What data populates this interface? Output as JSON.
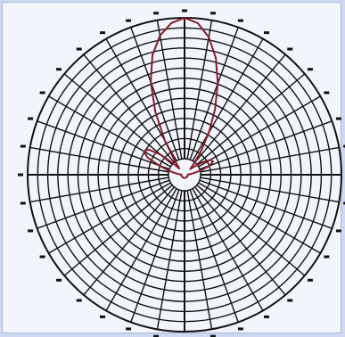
{
  "colors": {
    "background": "#cfd8f0",
    "panel": "#f2f5fc",
    "grid": "#111111",
    "pattern": "#8a1a2a"
  },
  "chart_data": {
    "type": "polar",
    "title": "",
    "grid": true,
    "r_range": [
      0,
      1
    ],
    "angle_labels": [],
    "series": [
      {
        "theta_deg": [
          0,
          5,
          10,
          15,
          20,
          25,
          30,
          35,
          40,
          45,
          50,
          55,
          60,
          65,
          70,
          75,
          80,
          85,
          90,
          95,
          100,
          105,
          110,
          115,
          120,
          125,
          130,
          135,
          140,
          145,
          150,
          155,
          160,
          165,
          170,
          175,
          180,
          185,
          190,
          195,
          200,
          205,
          210,
          215,
          220,
          225,
          230,
          235,
          240,
          245,
          250,
          255,
          260,
          265,
          270,
          275,
          280,
          285,
          290,
          295,
          300,
          305,
          310,
          315,
          320,
          325,
          330,
          335,
          340,
          345,
          350,
          355,
          360
        ],
        "r": [
          1.0,
          0.97,
          0.89,
          0.77,
          0.62,
          0.46,
          0.31,
          0.18,
          0.09,
          0.05,
          0.08,
          0.14,
          0.19,
          0.2,
          0.17,
          0.11,
          0.06,
          0.03,
          0.02,
          0.02,
          0.02,
          0.02,
          0.02,
          0.02,
          0.02,
          0.02,
          0.02,
          0.02,
          0.02,
          0.02,
          0.02,
          0.02,
          0.02,
          0.02,
          0.02,
          0.02,
          0.02,
          0.02,
          0.02,
          0.02,
          0.02,
          0.02,
          0.02,
          0.02,
          0.02,
          0.02,
          0.02,
          0.02,
          0.02,
          0.02,
          0.02,
          0.02,
          0.02,
          0.02,
          0.02,
          0.03,
          0.06,
          0.11,
          0.17,
          0.26,
          0.3,
          0.28,
          0.2,
          0.1,
          0.05,
          0.1,
          0.25,
          0.44,
          0.63,
          0.79,
          0.9,
          0.97,
          1.0
        ]
      }
    ]
  }
}
